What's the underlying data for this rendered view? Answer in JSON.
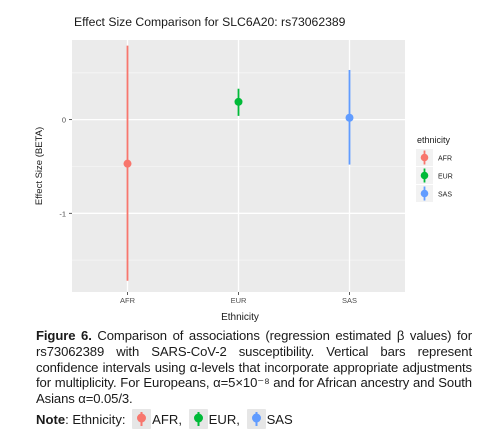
{
  "chart_data": {
    "type": "scatter",
    "title": "Effect Size Comparison for SLC6A20: rs73062389",
    "xlabel": "Ethnicity",
    "ylabel": "Effect Size (BETA)",
    "categories": [
      "AFR",
      "EUR",
      "SAS"
    ],
    "series": [
      {
        "name": "AFR",
        "color": "#F8766D",
        "estimate": -0.47,
        "lower": -1.72,
        "upper": 0.79
      },
      {
        "name": "EUR",
        "color": "#00BA38",
        "estimate": 0.19,
        "lower": 0.04,
        "upper": 0.33
      },
      {
        "name": "SAS",
        "color": "#619CFF",
        "estimate": 0.02,
        "lower": -0.48,
        "upper": 0.53
      }
    ],
    "ylim": [
      -1.84,
      0.85
    ],
    "yticks": [
      -1,
      0
    ],
    "ytick_labels": [
      "-1",
      "0"
    ],
    "grid": true,
    "legend": {
      "title": "ethnicity",
      "position": "right"
    }
  },
  "caption": {
    "label": "Figure 6.",
    "text": "Comparison of associations (regression estimated β values) for rs73062389 with SARS-CoV-2 susceptibility. Vertical bars represent confidence intervals using α-levels that incorporate appropriate adjustments for multiplicity. For Europeans, α=5×10⁻⁸ and for African ancestry and South Asians α=0.05/3."
  },
  "note": {
    "label": "Note",
    "prefix": ": Ethnicity:",
    "items": [
      {
        "label": "AFR,",
        "color": "#F8766D"
      },
      {
        "label": "EUR,",
        "color": "#00BA38"
      },
      {
        "label": "SAS",
        "color": "#619CFF"
      }
    ]
  }
}
